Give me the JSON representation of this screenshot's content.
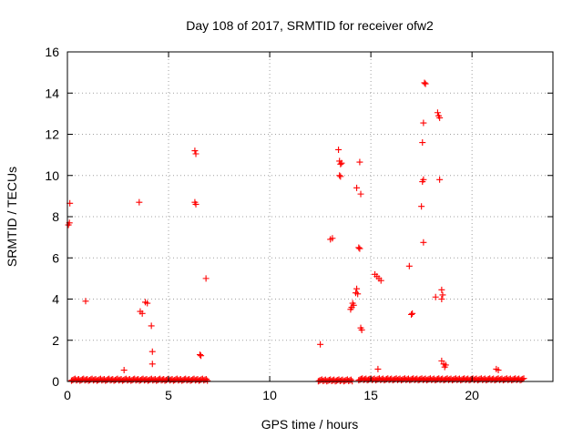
{
  "chart_data": {
    "type": "scatter",
    "title": "Day 108 of 2017, SRMTID for receiver ofw2",
    "xlabel": "GPS time / hours",
    "ylabel": "SRMTID / TECUs",
    "xlim": [
      0,
      24
    ],
    "ylim": [
      0,
      16
    ],
    "xticks": [
      0,
      5,
      10,
      15,
      20
    ],
    "yticks": [
      0,
      2,
      4,
      6,
      8,
      10,
      12,
      14,
      16
    ],
    "grid": true,
    "marker": "plus",
    "color": "#ff0000",
    "series": [
      {
        "name": "ofw2",
        "points": [
          [
            0.05,
            7.6
          ],
          [
            0.1,
            7.7
          ],
          [
            0.12,
            8.65
          ],
          [
            0.9,
            3.9
          ],
          [
            2.8,
            0.55
          ],
          [
            3.55,
            8.7
          ],
          [
            3.6,
            3.4
          ],
          [
            3.7,
            3.3
          ],
          [
            3.85,
            3.85
          ],
          [
            3.95,
            3.8
          ],
          [
            4.15,
            2.7
          ],
          [
            4.2,
            1.45
          ],
          [
            4.2,
            0.85
          ],
          [
            6.3,
            11.2
          ],
          [
            6.35,
            11.05
          ],
          [
            6.3,
            8.7
          ],
          [
            6.35,
            8.6
          ],
          [
            6.55,
            1.3
          ],
          [
            6.6,
            1.25
          ],
          [
            6.85,
            5.0
          ],
          [
            12.5,
            1.8
          ],
          [
            13.0,
            6.9
          ],
          [
            13.1,
            6.95
          ],
          [
            13.4,
            11.25
          ],
          [
            13.45,
            10.7
          ],
          [
            13.5,
            10.55
          ],
          [
            13.55,
            10.6
          ],
          [
            13.45,
            10.0
          ],
          [
            13.5,
            9.95
          ],
          [
            14.0,
            3.5
          ],
          [
            14.05,
            3.6
          ],
          [
            14.1,
            3.8
          ],
          [
            14.15,
            3.7
          ],
          [
            14.25,
            4.3
          ],
          [
            14.3,
            4.5
          ],
          [
            14.35,
            4.25
          ],
          [
            14.3,
            9.4
          ],
          [
            14.45,
            10.65
          ],
          [
            14.5,
            9.1
          ],
          [
            14.4,
            6.5
          ],
          [
            14.45,
            6.45
          ],
          [
            14.5,
            2.6
          ],
          [
            14.55,
            2.5
          ],
          [
            15.2,
            5.2
          ],
          [
            15.3,
            5.1
          ],
          [
            15.4,
            5.0
          ],
          [
            15.5,
            4.9
          ],
          [
            15.35,
            0.6
          ],
          [
            16.9,
            5.6
          ],
          [
            17.0,
            3.25
          ],
          [
            17.05,
            3.3
          ],
          [
            17.5,
            8.5
          ],
          [
            17.55,
            9.7
          ],
          [
            17.6,
            9.8
          ],
          [
            17.55,
            11.6
          ],
          [
            17.6,
            12.55
          ],
          [
            17.6,
            6.75
          ],
          [
            17.65,
            14.5
          ],
          [
            17.7,
            14.45
          ],
          [
            18.2,
            4.1
          ],
          [
            18.3,
            13.05
          ],
          [
            18.35,
            12.9
          ],
          [
            18.4,
            12.8
          ],
          [
            18.4,
            9.8
          ],
          [
            18.5,
            4.0
          ],
          [
            18.5,
            4.45
          ],
          [
            18.55,
            4.2
          ],
          [
            18.5,
            1.0
          ],
          [
            18.6,
            0.85
          ],
          [
            18.65,
            0.7
          ],
          [
            18.7,
            0.8
          ],
          [
            21.2,
            0.6
          ],
          [
            21.3,
            0.55
          ]
        ]
      }
    ],
    "baseline_segments": [
      {
        "start": 0.2,
        "end": 6.95,
        "value": 0.08
      },
      {
        "start": 12.4,
        "end": 14.1,
        "value": 0.05
      },
      {
        "start": 14.4,
        "end": 22.6,
        "value": 0.1
      }
    ]
  }
}
